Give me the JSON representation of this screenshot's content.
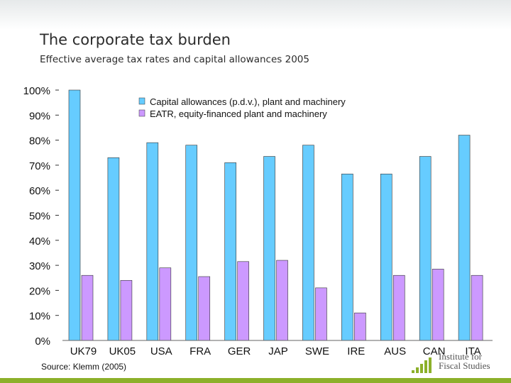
{
  "slide": {
    "title": "The corporate tax burden",
    "subtitle": "Effective average tax rates and capital allowances 2005",
    "source": "Source: Klemm (2005)",
    "logo_line1": "Institute for",
    "logo_line2": "Fiscal Studies",
    "colors": {
      "accent_green": "#8cb02a"
    }
  },
  "chart_data": {
    "type": "bar",
    "categories": [
      "UK79",
      "UK05",
      "USA",
      "FRA",
      "GER",
      "JAP",
      "SWE",
      "IRE",
      "AUS",
      "CAN",
      "ITA"
    ],
    "series": [
      {
        "name": "Capital allowances (p.d.v.), plant and machinery",
        "color": "#66ccff",
        "values": [
          100,
          73,
          79,
          78,
          71,
          73.5,
          78,
          66.5,
          66.5,
          73.5,
          82
        ]
      },
      {
        "name": "EATR, equity-financed plant and machinery",
        "color": "#cc99ff",
        "values": [
          26,
          24,
          29,
          25.5,
          31.5,
          32,
          21,
          11,
          26,
          28.5,
          26
        ]
      }
    ],
    "y_ticks": [
      "0%",
      "10%",
      "20%",
      "30%",
      "40%",
      "50%",
      "60%",
      "70%",
      "80%",
      "90%",
      "100%"
    ],
    "ylim": [
      0,
      100
    ],
    "grid": false,
    "legend_position": "top-right"
  }
}
